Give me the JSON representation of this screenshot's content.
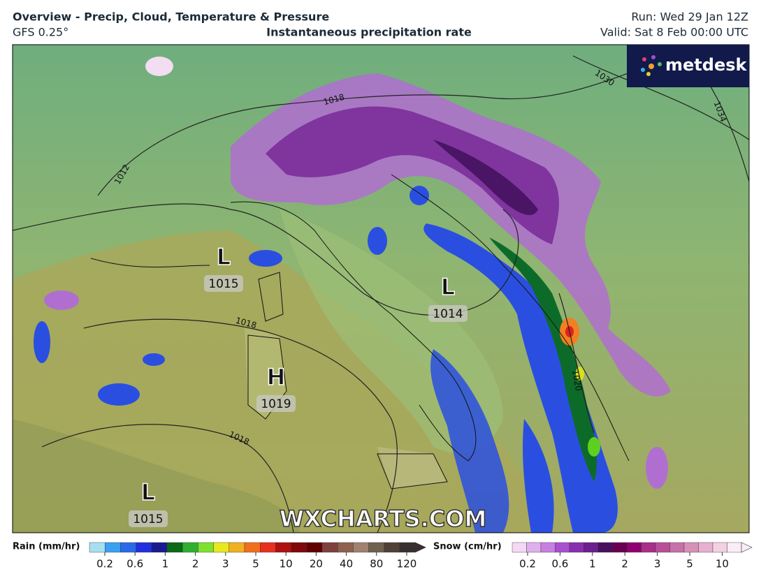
{
  "header": {
    "title": "Overview - Precip, Cloud, Temperature & Pressure",
    "model": "GFS 0.25°",
    "product": "Instantaneous precipitation rate",
    "run": "Run: Wed 29 Jan 12Z",
    "valid": "Valid: Sat 8 Feb 00:00 UTC"
  },
  "brand": "metdesk",
  "watermark": "WXCHARTS.COM",
  "pressure_centers": [
    {
      "letter": "L",
      "value": 1015
    },
    {
      "letter": "L",
      "value": 1014
    },
    {
      "letter": "H",
      "value": 1019
    },
    {
      "letter": "L",
      "value": 1015
    }
  ],
  "isobar_labels": [
    1018,
    1012,
    1030,
    1034,
    1018,
    1018,
    1020
  ],
  "legend": {
    "rain": {
      "label": "Rain (mm/hr)",
      "ticks": [
        0.2,
        0.6,
        1,
        2,
        3,
        5,
        10,
        20,
        40,
        80,
        120
      ]
    },
    "snow": {
      "label": "Snow (cm/hr)",
      "ticks": [
        0.2,
        0.6,
        1,
        2,
        3,
        5,
        10
      ]
    }
  }
}
